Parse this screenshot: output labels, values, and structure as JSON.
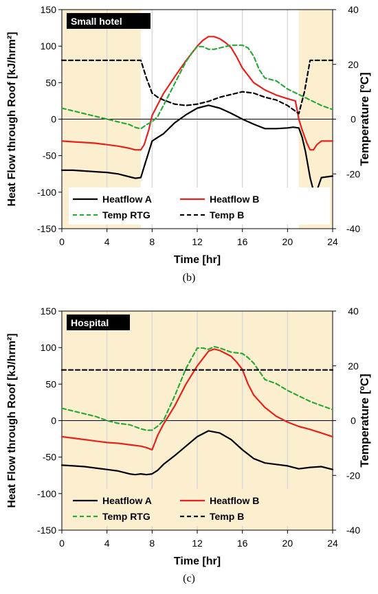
{
  "colors": {
    "heatflow_a": "#000000",
    "heatflow_b": "#e8211b",
    "temp_rtg": "#2aa838",
    "temp_b": "#000000",
    "shade": "#fbefcf",
    "grid": "#d9d9d9"
  },
  "chart_data": [
    {
      "type": "line",
      "panel_label": "(b)",
      "title": "Small hotel",
      "xlabel": "Time [hr]",
      "ylabel_left": "Heat Flow through Roof [kJ/hrm²]",
      "ylabel_right": "Temperature [ºC]",
      "xlim": [
        0,
        24
      ],
      "ylim_left": [
        -150,
        150
      ],
      "ylim_right": [
        -40,
        40
      ],
      "xticks": [
        "0",
        "4",
        "8",
        "12",
        "16",
        "20",
        "24"
      ],
      "yticks_left": [
        "-150",
        "-100",
        "-50",
        "0",
        "50",
        "100",
        "150"
      ],
      "yticks_right": [
        "-40",
        "-20",
        "0",
        "20",
        "40"
      ],
      "shaded_x_ranges": [
        [
          0,
          7
        ],
        [
          21,
          24
        ]
      ],
      "legend": [
        "Heatflow A",
        "Heatflow B",
        "Temp RTG",
        "Temp B"
      ],
      "series": [
        {
          "name": "Heatflow A",
          "axis": "left",
          "style": "solid",
          "x": [
            0,
            1,
            2,
            3,
            4,
            5,
            5.5,
            6,
            6.5,
            7,
            7.3,
            7.7,
            8,
            8.5,
            9,
            10,
            11,
            12,
            13,
            14,
            15,
            16,
            17,
            18,
            19,
            20,
            20.5,
            21,
            21.3,
            21.6,
            22,
            22.3,
            22.6,
            23,
            24
          ],
          "y": [
            -70,
            -70,
            -71,
            -72,
            -73,
            -75,
            -77,
            -79,
            -81,
            -80,
            -65,
            -45,
            -30,
            -25,
            -20,
            -5,
            6,
            15,
            19,
            15,
            8,
            0,
            -7,
            -13,
            -13,
            -12,
            -11,
            -12,
            -25,
            -45,
            -80,
            -98,
            -98,
            -80,
            -78
          ]
        },
        {
          "name": "Heatflow B",
          "axis": "left",
          "style": "solid",
          "x": [
            0,
            1,
            2,
            3,
            4,
            5,
            6,
            6.5,
            7,
            7.3,
            7.7,
            8,
            8.5,
            9,
            10,
            11,
            12,
            12.5,
            13,
            13.5,
            14,
            14.5,
            15,
            15.5,
            16,
            17,
            18,
            19,
            20,
            20.7,
            21,
            21.3,
            21.7,
            22,
            22.3,
            22.6,
            23,
            24
          ],
          "y": [
            -30,
            -31,
            -32,
            -33,
            -35,
            -37,
            -40,
            -42,
            -42,
            -35,
            -15,
            5,
            20,
            35,
            58,
            80,
            100,
            108,
            113,
            113,
            110,
            105,
            98,
            85,
            70,
            50,
            40,
            33,
            28,
            25,
            0,
            -15,
            -32,
            -42,
            -42,
            -35,
            -30,
            -30
          ]
        },
        {
          "name": "Temp RTG",
          "axis": "right",
          "style": "dashed",
          "x": [
            0,
            1,
            2,
            3,
            4,
            5,
            6,
            6.5,
            7,
            7.5,
            8,
            8.5,
            9,
            10,
            11,
            11.5,
            12,
            12.5,
            13,
            13.5,
            14,
            15,
            16,
            16.5,
            17,
            17.5,
            18,
            19,
            20,
            21,
            22,
            23,
            24
          ],
          "y": [
            4,
            3,
            2,
            1,
            0,
            -1,
            -2,
            -3,
            -3.5,
            -2,
            -1,
            1,
            5,
            13,
            21,
            24,
            26.5,
            26.5,
            25.5,
            25.5,
            26,
            27,
            27,
            26,
            23,
            18,
            15,
            14,
            11,
            9,
            7,
            5,
            3.5
          ]
        },
        {
          "name": "Temp B",
          "axis": "right",
          "style": "dashed",
          "x": [
            0,
            7,
            7.5,
            8,
            8.5,
            9,
            10,
            11,
            12,
            13,
            14,
            15,
            16,
            17,
            18,
            19,
            20,
            20.5,
            21,
            21.5,
            22,
            24
          ],
          "y": [
            21.5,
            21.5,
            15,
            9.5,
            8,
            7,
            5.5,
            5,
            5.5,
            6.5,
            8,
            9,
            10,
            9.5,
            8,
            7,
            5,
            3.5,
            2,
            10,
            21.5,
            21.5
          ]
        }
      ]
    },
    {
      "type": "line",
      "panel_label": "(c)",
      "title": "Hospital",
      "xlabel": "Time [hr]",
      "ylabel_left": "Heat Flow through Roof [kJ/hrm²]",
      "ylabel_right": "Temperature [ºC]",
      "xlim": [
        0,
        24
      ],
      "ylim_left": [
        -150,
        150
      ],
      "ylim_right": [
        -40,
        40
      ],
      "xticks": [
        "0",
        "4",
        "8",
        "12",
        "16",
        "20",
        "24"
      ],
      "yticks_left": [
        "-150",
        "-100",
        "-50",
        "0",
        "50",
        "100",
        "150"
      ],
      "yticks_right": [
        "-40",
        "-20",
        "0",
        "20",
        "40"
      ],
      "shaded_x_ranges": [
        [
          0,
          24
        ]
      ],
      "legend": [
        "Heatflow A",
        "Heatflow B",
        "Temp RTG",
        "Temp B"
      ],
      "series": [
        {
          "name": "Heatflow A",
          "axis": "left",
          "style": "solid",
          "x": [
            0,
            1,
            2,
            3,
            4,
            5,
            6,
            6.5,
            7,
            7.5,
            8,
            8.5,
            9,
            10,
            11,
            12,
            13,
            14,
            15,
            16,
            17,
            18,
            19,
            20,
            21,
            22,
            23,
            24
          ],
          "y": [
            -61,
            -62,
            -63,
            -65,
            -67,
            -69,
            -73,
            -74,
            -73,
            -74,
            -73,
            -68,
            -60,
            -48,
            -35,
            -22,
            -14,
            -17,
            -26,
            -40,
            -52,
            -58,
            -60,
            -62,
            -66,
            -64,
            -63,
            -67
          ]
        },
        {
          "name": "Heatflow B",
          "axis": "left",
          "style": "solid",
          "x": [
            0,
            1,
            2,
            3,
            4,
            5,
            6,
            7,
            7.5,
            8,
            8.5,
            9,
            10,
            11,
            12,
            13,
            13.5,
            14,
            15,
            15.5,
            16,
            16.5,
            17,
            18,
            19,
            20,
            21,
            22,
            23,
            24
          ],
          "y": [
            -22,
            -24,
            -26,
            -28,
            -30,
            -31,
            -33,
            -35,
            -37,
            -40,
            -20,
            -5,
            20,
            50,
            75,
            95,
            98,
            96,
            88,
            80,
            70,
            50,
            35,
            18,
            6,
            -2,
            -8,
            -12,
            -17,
            -22
          ]
        },
        {
          "name": "Temp RTG",
          "axis": "right",
          "style": "dashed",
          "x": [
            0,
            1,
            2,
            3,
            4,
            5,
            6,
            7,
            7.5,
            8,
            8.5,
            9,
            10,
            11,
            12,
            12.5,
            13,
            13.5,
            14,
            15,
            16,
            16.5,
            17,
            17.5,
            18,
            19,
            20,
            21,
            22,
            23,
            24
          ],
          "y": [
            4.5,
            3.5,
            2.5,
            1.5,
            0,
            -1,
            -1.5,
            -3,
            -3.5,
            -3.5,
            -2,
            0,
            9,
            19,
            26.5,
            26.5,
            26,
            27,
            26.5,
            25,
            24.5,
            23,
            21,
            18,
            15,
            13.5,
            11,
            9,
            7,
            5.5,
            4
          ]
        },
        {
          "name": "Temp B",
          "axis": "right",
          "style": "dashed",
          "x": [
            0,
            24
          ],
          "y": [
            18.5,
            18.5
          ]
        }
      ]
    }
  ]
}
